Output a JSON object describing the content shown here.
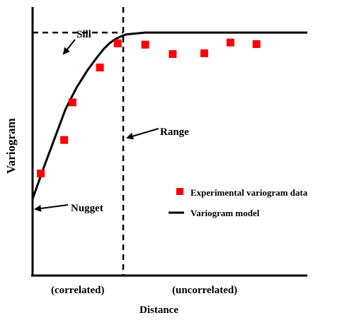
{
  "chart_data": {
    "type": "scatter",
    "xlabel": "Distance",
    "ylabel": "Variogram",
    "xlim": [
      0,
      100
    ],
    "ylim": [
      0,
      100
    ],
    "grid": false,
    "legend_position": "right",
    "region_labels": [
      "(correlated)",
      "(uncorrelated)"
    ],
    "series": [
      {
        "name": "Experimental variogram data",
        "marker": "square",
        "color": "#ff0000",
        "x": [
          3,
          11.5,
          14.5,
          24.5,
          31,
          41,
          51,
          62.5,
          72,
          81.5
        ],
        "y": [
          38,
          50.5,
          64.5,
          77.5,
          86.5,
          86,
          82.5,
          82.8,
          86.8,
          86.2
        ]
      },
      {
        "name": "Variogram model",
        "type": "line",
        "color": "#000000",
        "x": [
          0,
          4,
          8,
          12,
          16,
          20,
          24,
          26,
          28,
          30,
          32,
          34,
          36,
          38,
          41,
          60,
          80,
          100
        ],
        "y": [
          28.5,
          40,
          51,
          62,
          70,
          76.5,
          82,
          84.5,
          86.5,
          88,
          89,
          89.8,
          90,
          90.2,
          90.5,
          90.5,
          90.5,
          90.5
        ]
      }
    ],
    "reference_lines": {
      "sill": 90.5,
      "range": 33
    },
    "annotations": [
      {
        "text": "Sill",
        "points_to": "sill line"
      },
      {
        "text": "Range",
        "points_to": "range line"
      },
      {
        "text": "Nugget",
        "points_to": "y-intercept of model"
      }
    ]
  }
}
